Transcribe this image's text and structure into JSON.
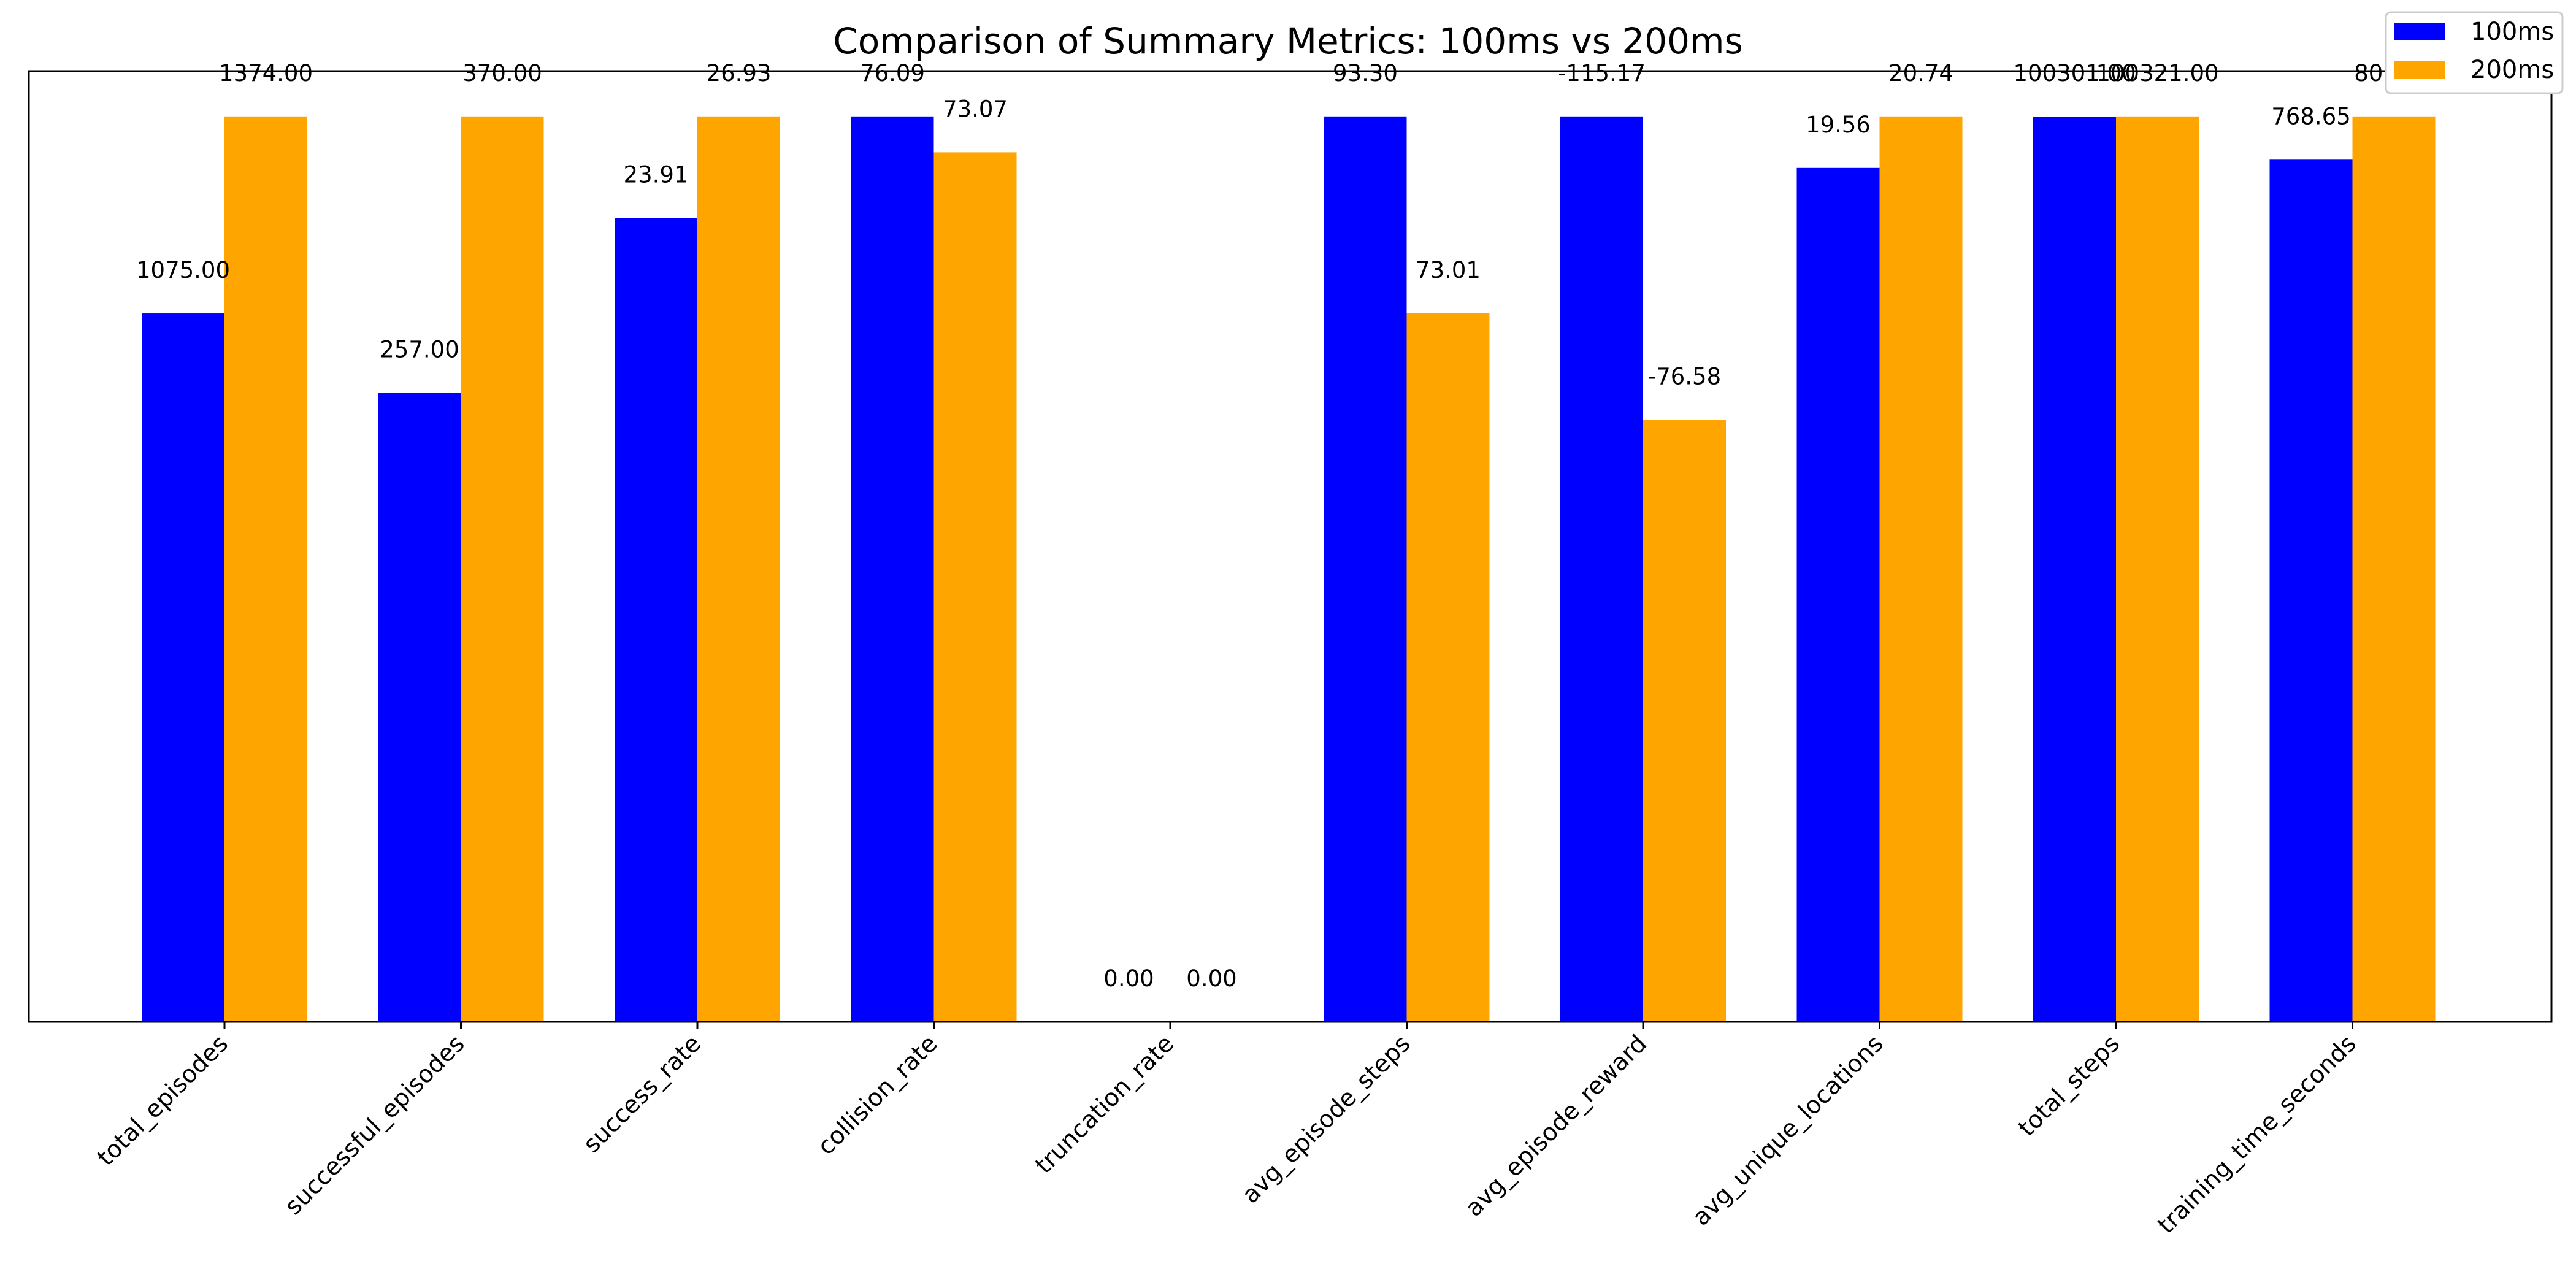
{
  "chart_data": {
    "type": "bar",
    "title": "Comparison of Summary Metrics: 100ms vs 200ms",
    "xlabel": "",
    "ylabel": "",
    "normalized_per_category": true,
    "categories": [
      "total_episodes",
      "successful_episodes",
      "success_rate",
      "collision_rate",
      "truncation_rate",
      "avg_episode_steps",
      "avg_episode_reward",
      "avg_unique_locations",
      "total_steps",
      "training_time_seconds"
    ],
    "series": [
      {
        "name": "100ms",
        "color": "#0000ff",
        "values": [
          1075.0,
          257.0,
          23.91,
          76.09,
          0.0,
          93.3,
          -115.17,
          19.56,
          100301.0,
          768.65
        ],
        "labels": [
          "1075.00",
          "257.00",
          "23.91",
          "76.09",
          "0.00",
          "93.30",
          "-115.17",
          "19.56",
          "100301.00",
          "768.65"
        ]
      },
      {
        "name": "200ms",
        "color": "#ffa500",
        "values": [
          1374.0,
          370.0,
          26.93,
          73.07,
          0.0,
          73.01,
          -76.58,
          20.74,
          100321.0,
          807.2
        ],
        "labels": [
          "1374.00",
          "370.00",
          "26.93",
          "73.07",
          "0.00",
          "73.01",
          "-76.58",
          "20.74",
          "100321.00",
          "807.20"
        ]
      }
    ],
    "legend": {
      "position": "top-right",
      "entries": [
        "100ms",
        "200ms"
      ]
    },
    "grid": false
  }
}
